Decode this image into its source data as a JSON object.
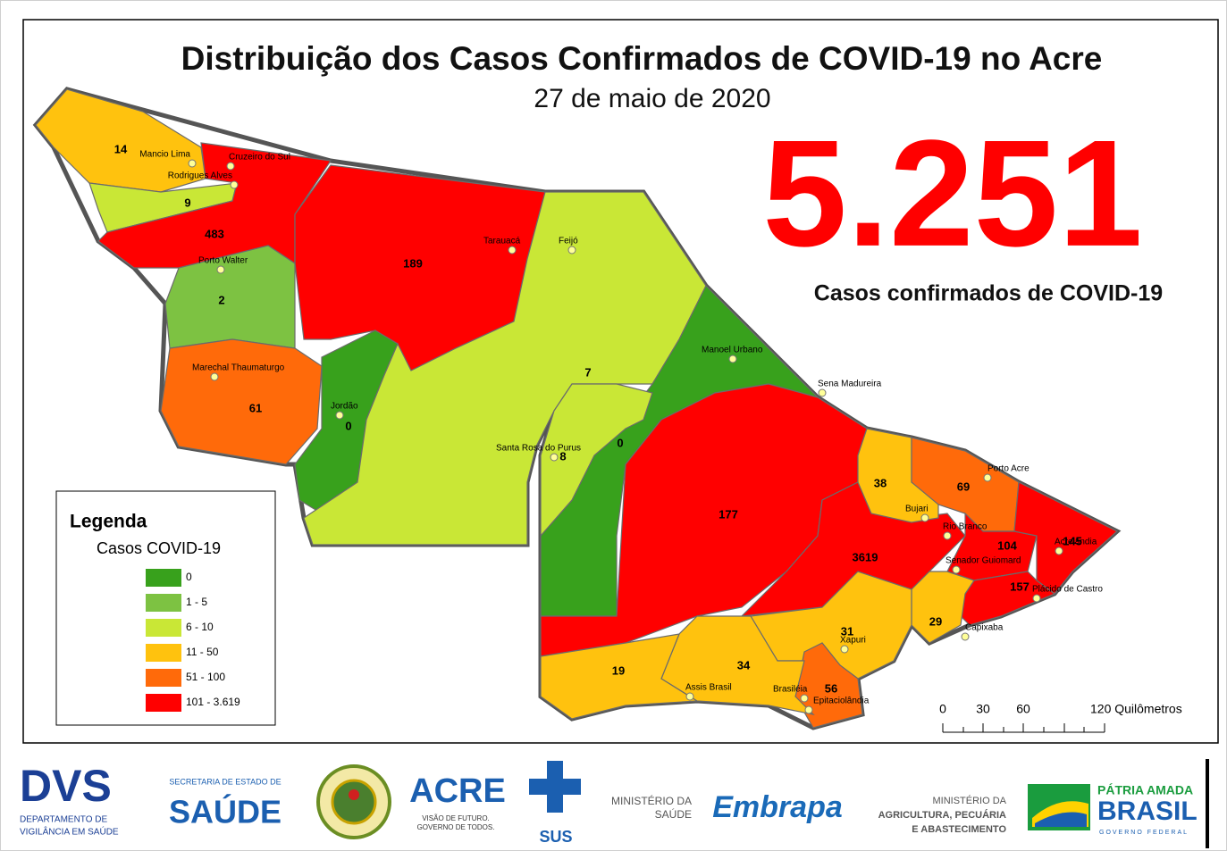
{
  "title": "Distribuição dos Casos Confirmados de COVID-19 no Acre",
  "date": "27 de maio de 2020",
  "total": "5.251",
  "total_label": "Casos confirmados de COVID-19",
  "legend": {
    "title": "Legenda",
    "subtitle": "Casos COVID-19",
    "classes": [
      {
        "label": "0",
        "color": "#38a11c"
      },
      {
        "label": "1 - 5",
        "color": "#7dc242"
      },
      {
        "label": "6 - 10",
        "color": "#c9e736"
      },
      {
        "label": "11 - 50",
        "color": "#ffc20e"
      },
      {
        "label": "51 - 100",
        "color": "#ff6a0a"
      },
      {
        "label": "101 - 3.619",
        "color": "#ff0000"
      }
    ]
  },
  "map": {
    "regions": [
      {
        "city": "Mancio Lima",
        "count": 14,
        "color": "#ffc20e"
      },
      {
        "city": "Rodrigues Alves",
        "count": 9,
        "color": "#c9e736"
      },
      {
        "city": "Cruzeiro do Sul",
        "count": 483,
        "color": "#ff0000"
      },
      {
        "city": "Porto Walter",
        "count": 2,
        "color": "#7dc242"
      },
      {
        "city": "Marechal Thaumaturgo",
        "count": 61,
        "color": "#ff6a0a"
      },
      {
        "city": "Tarauacá",
        "count": 189,
        "color": "#ff0000"
      },
      {
        "city": "Jordão",
        "count": 0,
        "color": "#38a11c"
      },
      {
        "city": "Feijó",
        "count": 7,
        "color": "#c9e736"
      },
      {
        "city": "Manoel Urbano",
        "count": 0,
        "color": "#38a11c"
      },
      {
        "city": "Santa Rosa do Purus",
        "count": 8,
        "color": "#c9e736"
      },
      {
        "city": "Sena Madureira",
        "count": 177,
        "color": "#ff0000"
      },
      {
        "city": "Rio Branco",
        "count": 3619,
        "color": "#ff0000"
      },
      {
        "city": "Bujari",
        "count": 38,
        "color": "#ffc20e"
      },
      {
        "city": "Porto Acre",
        "count": 69,
        "color": "#ff6a0a"
      },
      {
        "city": "Senador Guiomard",
        "count": 104,
        "color": "#ff0000"
      },
      {
        "city": "Acrelândia",
        "count": 145,
        "color": "#ff0000"
      },
      {
        "city": "Plácido de Castro",
        "count": 157,
        "color": "#ff0000"
      },
      {
        "city": "Capixaba",
        "count": 29,
        "color": "#ffc20e"
      },
      {
        "city": "Xapuri",
        "count": 31,
        "color": "#ffc20e"
      },
      {
        "city": "Epitaciolândia",
        "count": 56,
        "color": "#ff6a0a"
      },
      {
        "city": "Brasiléia",
        "count": 34,
        "color": "#ffc20e"
      },
      {
        "city": "Assis Brasil",
        "count": 19,
        "color": "#ffc20e"
      }
    ]
  },
  "scale_bar": [
    "0",
    "30",
    "60",
    "120 Quilômetros"
  ],
  "footer": {
    "dvs": "DVS",
    "dvs_sub1": "DEPARTAMENTO DE",
    "dvs_sub2": "VIGILÂNCIA EM SAÚDE",
    "sesacre_top": "SECRETARIA DE ESTADO DE",
    "sesacre": "SAÚDE",
    "acre": "ACRE",
    "acre_sub1": "VISÃO DE FUTURO.",
    "acre_sub2": "GOVERNO DE TODOS.",
    "sus": "SUS",
    "ms1": "MINISTÉRIO DA",
    "ms2": "SAÚDE",
    "embrapa": "Embrapa",
    "mapa1": "MINISTÉRIO DA",
    "mapa2": "AGRICULTURA, PECUÁRIA",
    "mapa3": "E ABASTECIMENTO",
    "patria": "PÁTRIA AMADA",
    "brasil": "BRASIL",
    "gov": "GOVERNO FEDERAL"
  }
}
